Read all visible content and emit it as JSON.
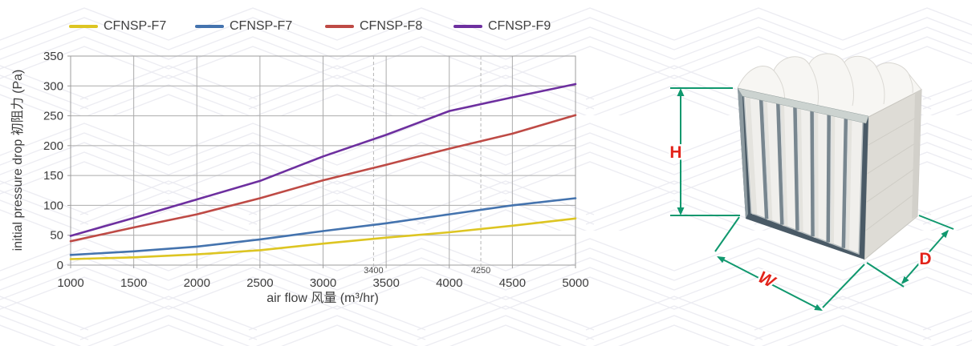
{
  "chart_data": {
    "type": "line",
    "title": "",
    "x": [
      1000,
      1500,
      2000,
      2500,
      3000,
      3500,
      4000,
      4500,
      5000
    ],
    "xlabel": "air flow 风量 (m³/hr)",
    "ylabel": "initial pressure drop 初阻力 (Pa)",
    "xlim": [
      1000,
      5000
    ],
    "ylim": [
      0,
      350
    ],
    "ytick_step": 50,
    "xtick_step": 500,
    "grid": true,
    "legend_position": "top",
    "reference_lines_x": [
      3400,
      4250
    ],
    "series": [
      {
        "name": "CFNSP-F7",
        "color": "#DDC522",
        "values": [
          10,
          13,
          18,
          25,
          36,
          46,
          55,
          66,
          78
        ]
      },
      {
        "name": "CFNSP-F7",
        "color": "#4473AE",
        "values": [
          17,
          23,
          31,
          43,
          57,
          70,
          85,
          100,
          112
        ]
      },
      {
        "name": "CFNSP-F8",
        "color": "#BE4A45",
        "values": [
          40,
          63,
          85,
          112,
          142,
          168,
          195,
          220,
          251
        ]
      },
      {
        "name": "CFNSP-F9",
        "color": "#6D2F9F",
        "values": [
          49,
          79,
          110,
          141,
          182,
          218,
          258,
          281,
          303
        ]
      }
    ]
  },
  "figure": {
    "dimension_labels": {
      "h": "H",
      "w": "W",
      "d": "D"
    },
    "arrow_color": "#10986E",
    "label_color": "#E2231A"
  },
  "style_colors": {
    "gridline": "#ababab",
    "pattern": "#ececf2",
    "tick_text": "#3d3d3d"
  }
}
